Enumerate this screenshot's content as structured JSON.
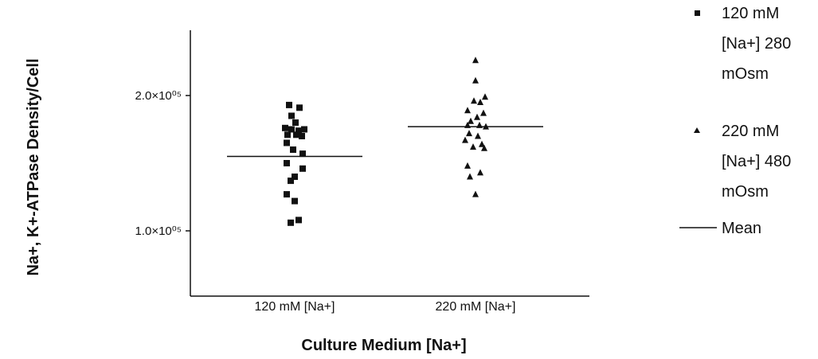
{
  "chart_data": {
    "type": "scatter",
    "title": "",
    "xlabel": "Culture Medium [Na+]",
    "ylabel": "Na+, K+-ATPase Density/Cell",
    "categories": [
      "120 mM [Na+]",
      "220 mM [Na+]"
    ],
    "ylim": [
      50000,
      250000
    ],
    "yticks": [
      {
        "value": 100000,
        "label": "1.0×10⁰⁵"
      },
      {
        "value": 200000,
        "label": "2.0×10⁰⁵"
      }
    ],
    "grid": false,
    "legend_position": "right",
    "series": [
      {
        "name": "120 mM [Na+] 280 mOsm",
        "marker": "square",
        "category": "120 mM [Na+]",
        "values": [
          193000,
          191000,
          185000,
          180000,
          176000,
          175000,
          175000,
          174000,
          171000,
          171000,
          170000,
          165000,
          160000,
          157000,
          150000,
          146000,
          140000,
          137000,
          127000,
          122000,
          108000,
          106000
        ],
        "offsets": [
          -0.07,
          0.06,
          -0.04,
          0.01,
          -0.12,
          0.12,
          -0.04,
          0.05,
          -0.09,
          0.02,
          0.09,
          -0.1,
          -0.02,
          0.1,
          -0.1,
          0.1,
          0.0,
          -0.05,
          -0.1,
          0.0,
          0.05,
          -0.05
        ],
        "mean": 155000
      },
      {
        "name": "220 mM [Na+] 480 mOsm",
        "marker": "triangle",
        "category": "220 mM [Na+]",
        "values": [
          226000,
          211000,
          199000,
          196000,
          195000,
          189000,
          187000,
          184000,
          181000,
          178000,
          178000,
          177000,
          172000,
          170000,
          167000,
          164000,
          162000,
          161000,
          148000,
          143000,
          140000,
          127000
        ],
        "offsets": [
          0.0,
          0.0,
          0.12,
          -0.02,
          0.06,
          -0.1,
          0.1,
          0.02,
          -0.06,
          -0.1,
          0.05,
          0.13,
          -0.08,
          0.03,
          -0.13,
          0.08,
          -0.03,
          0.11,
          -0.1,
          0.06,
          -0.07,
          0.0
        ],
        "mean": 177000
      }
    ]
  },
  "legend": {
    "items": [
      {
        "symbol": "square",
        "lines": [
          "120 mM",
          "[Na+] 280",
          "mOsm"
        ]
      },
      {
        "symbol": "triangle",
        "lines": [
          "220 mM",
          "[Na+] 480",
          "mOsm"
        ]
      },
      {
        "symbol": "line",
        "lines": [
          "Mean"
        ]
      }
    ]
  }
}
